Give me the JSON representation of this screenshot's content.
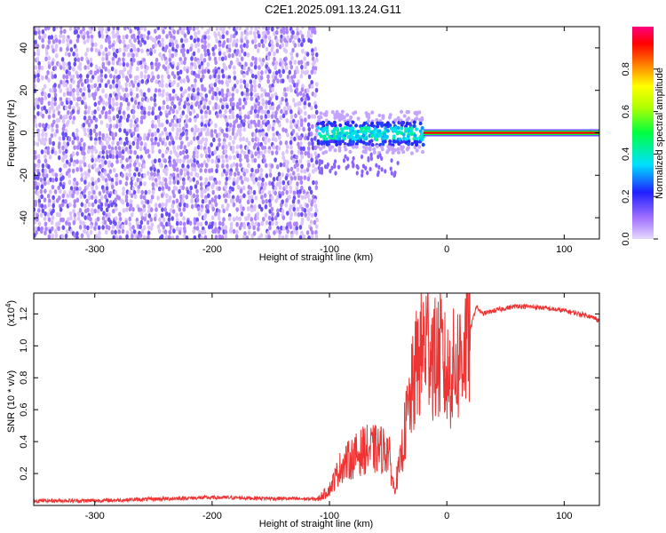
{
  "title": "C2E1.2025.091.13.24.G11",
  "colors": {
    "snr_line": "#ee3333",
    "spectro_base": "#6a1fe0",
    "spectro_light": "#d9c8fb",
    "frame": "#000000"
  },
  "chart_data": [
    {
      "type": "heatmap",
      "xlabel": "Height of straight line (km)",
      "ylabel": "Frequency (Hz)",
      "xlim": [
        -352,
        130
      ],
      "ylim": [
        -50,
        50
      ],
      "xticks": [
        -300,
        -200,
        -100,
        0,
        100
      ],
      "xtick_labels": [
        "-300",
        "-200",
        "-100",
        "0",
        "100"
      ],
      "yticks": [
        -40,
        -20,
        0,
        20,
        40
      ],
      "ytick_labels": [
        "-40",
        "-20",
        "0",
        "20",
        "40"
      ],
      "regions": [
        {
          "x_range": [
            -352,
            -110
          ],
          "y_range": [
            -50,
            50
          ],
          "amplitude": 0.2,
          "kind": "noise"
        },
        {
          "x_range": [
            -110,
            -20
          ],
          "y_range": [
            -10,
            10
          ],
          "amplitude": 0.4,
          "kind": "transition"
        },
        {
          "x_range": [
            -20,
            130
          ],
          "y_range": [
            -1,
            1
          ],
          "amplitude": 1.0,
          "kind": "carrier"
        }
      ],
      "colorbar": {
        "label": "Normalized spectral amplitude",
        "range": [
          0,
          1
        ],
        "ticks": [
          0.0,
          0.2,
          0.4,
          0.6,
          0.8
        ],
        "tick_labels": [
          "0.0",
          "0.2",
          "0.4",
          "0.6",
          "0.8"
        ]
      }
    },
    {
      "type": "line",
      "xlabel": "Height of straight line (km)",
      "ylabel": "SNR (10 * v/v)",
      "scale_note": "(x10",
      "scale_exp": "4",
      "xlim": [
        -352,
        130
      ],
      "ylim": [
        0,
        1.33
      ],
      "xticks": [
        -300,
        -200,
        -100,
        0,
        100
      ],
      "xtick_labels": [
        "-300",
        "-200",
        "-100",
        "0",
        "100"
      ],
      "yticks": [
        0.2,
        0.4,
        0.6,
        0.8,
        1.0,
        1.2
      ],
      "ytick_labels": [
        "0.2",
        "0.4",
        "0.6",
        "0.8",
        "1.0",
        "1.2"
      ],
      "series": [
        {
          "x": [
            -352,
            -300,
            -200,
            -110,
            -100,
            -90,
            -80,
            -70,
            -60,
            -50,
            -45,
            -40,
            -35,
            -30,
            -25,
            -20,
            -15,
            -10,
            -5,
            0,
            10,
            20,
            25,
            30,
            40,
            60,
            80,
            100,
            120,
            130
          ],
          "values": [
            0.03,
            0.03,
            0.05,
            0.04,
            0.1,
            0.25,
            0.3,
            0.35,
            0.35,
            0.35,
            0.1,
            0.25,
            0.5,
            0.7,
            0.9,
            1.0,
            1.05,
            0.9,
            0.95,
            0.8,
            0.9,
            1.1,
            1.25,
            1.2,
            1.22,
            1.25,
            1.24,
            1.22,
            1.19,
            1.16
          ]
        }
      ]
    }
  ]
}
